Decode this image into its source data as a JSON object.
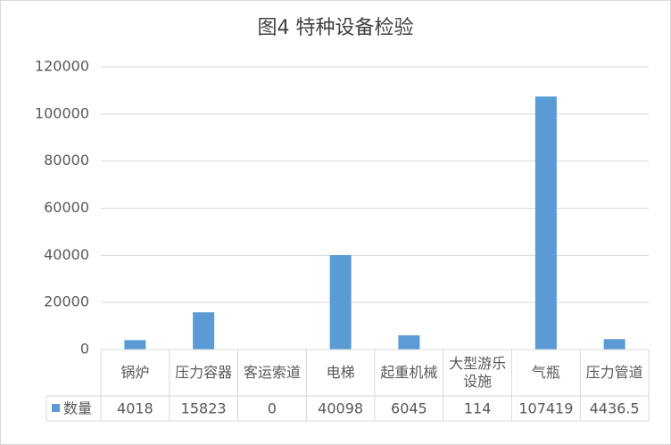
{
  "chart_data": {
    "type": "bar",
    "title": "图4  特种设备检验",
    "categories": [
      "锅炉",
      "压力容器",
      "客运索道",
      "电梯",
      "起重机械",
      "大型游乐设施",
      "气瓶",
      "压力管道"
    ],
    "series": [
      {
        "name": "数量",
        "color": "#5b9bd5",
        "values": [
          4018,
          15823,
          0,
          40098,
          6045,
          114,
          107419,
          4436.5
        ]
      }
    ],
    "ylim": [
      0,
      120000
    ],
    "yticks": [
      0,
      20000,
      40000,
      60000,
      80000,
      100000,
      120000
    ],
    "grid": true
  }
}
